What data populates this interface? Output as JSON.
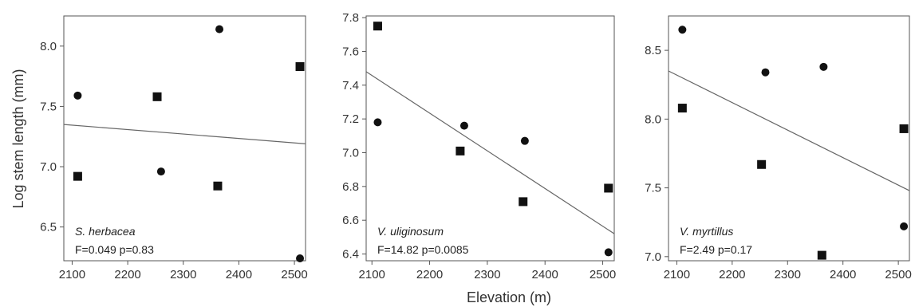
{
  "xlabel": "Elevation (m)",
  "ylabel": "Log stem length (mm)",
  "chart_data": [
    {
      "type": "scatter",
      "species": "S. herbacea",
      "stats": "F=0.049  p=0.83",
      "xlim": [
        2085,
        2520
      ],
      "ylim": [
        6.22,
        8.25
      ],
      "xticks": [
        "2100",
        "2200",
        "2300",
        "2400",
        "2500"
      ],
      "yticks": [
        "6.5",
        "7.0",
        "7.5",
        "8.0"
      ],
      "series": [
        {
          "marker": "circle",
          "x": [
            2110,
            2260,
            2365,
            2510
          ],
          "y": [
            7.59,
            6.96,
            8.14,
            6.24
          ]
        },
        {
          "marker": "square",
          "x": [
            2110,
            2253,
            2362,
            2510
          ],
          "y": [
            6.92,
            7.58,
            6.84,
            7.83
          ]
        }
      ],
      "trend": {
        "x": [
          2085,
          2520
        ],
        "y": [
          7.35,
          7.19
        ]
      }
    },
    {
      "type": "scatter",
      "species": "V. uliginosum",
      "stats": "F=14.82  p=0.0085",
      "xlim": [
        2090,
        2520
      ],
      "ylim": [
        6.36,
        7.81
      ],
      "xticks": [
        "2100",
        "2200",
        "2300",
        "2400",
        "2500"
      ],
      "yticks": [
        "6.4",
        "6.6",
        "6.8",
        "7.0",
        "7.2",
        "7.4",
        "7.6",
        "7.8"
      ],
      "series": [
        {
          "marker": "circle",
          "x": [
            2110,
            2260,
            2365,
            2510
          ],
          "y": [
            7.18,
            7.16,
            7.07,
            6.41
          ]
        },
        {
          "marker": "square",
          "x": [
            2110,
            2253,
            2362,
            2510
          ],
          "y": [
            7.75,
            7.01,
            6.71,
            6.79
          ]
        }
      ],
      "trend": {
        "x": [
          2090,
          2520
        ],
        "y": [
          7.48,
          6.52
        ]
      }
    },
    {
      "type": "scatter",
      "species": "V. myrtillus",
      "stats": "F=2.49  p=0.17",
      "xlim": [
        2085,
        2520
      ],
      "ylim": [
        6.97,
        8.75
      ],
      "xticks": [
        "2100",
        "2200",
        "2300",
        "2400",
        "2500"
      ],
      "yticks": [
        "7.0",
        "7.5",
        "8.0",
        "8.5"
      ],
      "series": [
        {
          "marker": "circle",
          "x": [
            2110,
            2260,
            2365,
            2510
          ],
          "y": [
            8.65,
            8.34,
            8.38,
            7.22
          ]
        },
        {
          "marker": "square",
          "x": [
            2110,
            2253,
            2362,
            2510
          ],
          "y": [
            8.08,
            7.67,
            7.01,
            7.93
          ]
        }
      ],
      "trend": {
        "x": [
          2085,
          2520
        ],
        "y": [
          8.35,
          7.48
        ]
      }
    }
  ]
}
